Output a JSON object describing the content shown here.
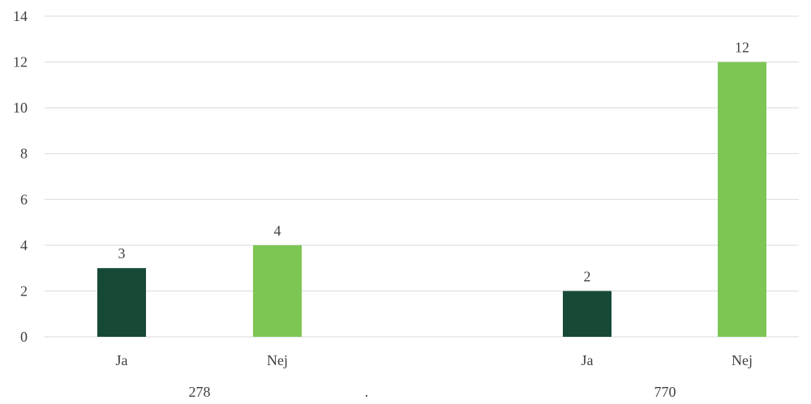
{
  "chart_data": {
    "type": "bar",
    "ylim": [
      0,
      14
    ],
    "yticks": [
      0,
      2,
      4,
      6,
      8,
      10,
      12,
      14
    ],
    "grid": true,
    "legend": "none",
    "groups": [
      {
        "label": "278",
        "bars": [
          {
            "category": "Ja",
            "value": 3,
            "color": "#174a36"
          },
          {
            "category": "Nej",
            "value": 4,
            "color": "#7ec654"
          }
        ]
      },
      {
        "label": "770",
        "bars": [
          {
            "category": "Ja",
            "value": 2,
            "color": "#174a36"
          },
          {
            "category": "Nej",
            "value": 12,
            "color": "#7ec654"
          }
        ]
      }
    ],
    "center_label": "."
  }
}
